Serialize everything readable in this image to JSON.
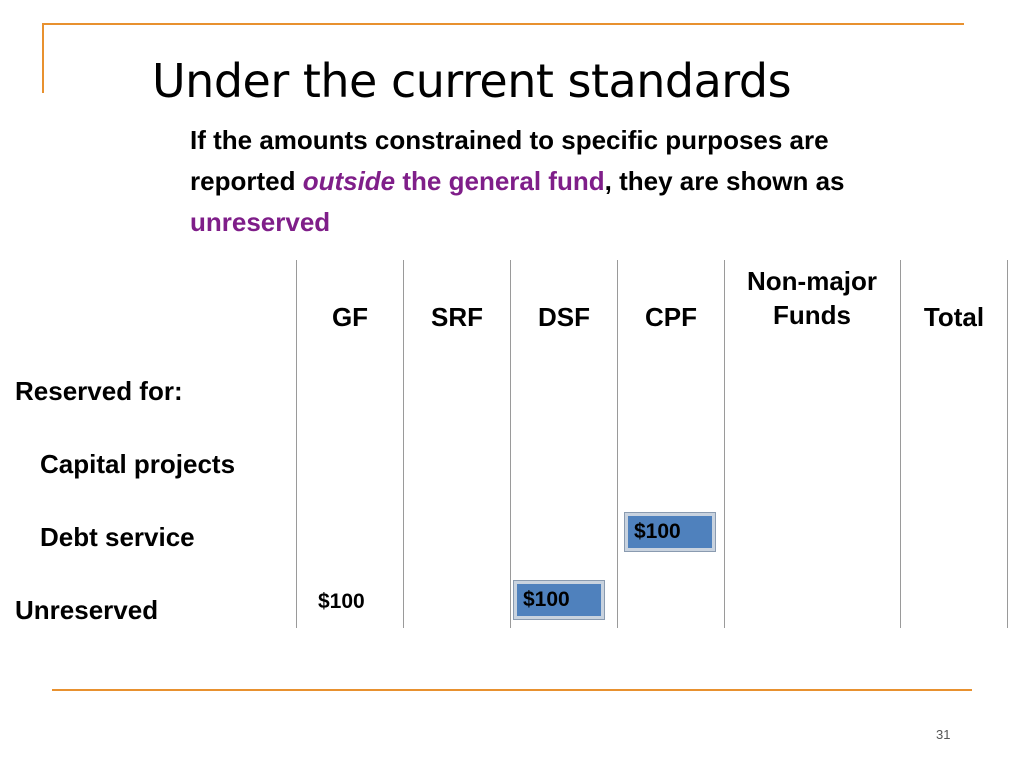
{
  "title": "Under the current standards",
  "intro": {
    "part1": "If the amounts constrained to specific purposes are reported ",
    "outside": "outside",
    "space": " ",
    "general_fund": "the general fund",
    "part2": ", they are shown as ",
    "unreserved": "unreserved"
  },
  "table": {
    "headers": [
      "GF",
      "SRF",
      "DSF",
      "CPF",
      "Non-major Funds",
      "Total"
    ],
    "rows": {
      "reserved_for": "Reserved for:",
      "capital_projects": "Capital projects",
      "debt_service": "Debt service",
      "unreserved": "Unreserved"
    },
    "values": {
      "debt_service_cpf": "$100",
      "unreserved_gf": "$100",
      "unreserved_dsf": "$100"
    }
  },
  "page_number": "31",
  "colors": {
    "accent": "#E8912F",
    "highlight_text": "#7F1E89",
    "highlight_box": "#4F81BD"
  }
}
